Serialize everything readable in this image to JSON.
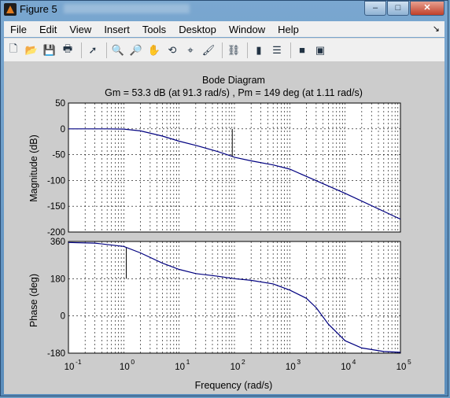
{
  "window": {
    "title": "Figure 5",
    "controls": {
      "minimize": "–",
      "maximize": "□",
      "close": "✕"
    }
  },
  "menu": {
    "items": [
      "File",
      "Edit",
      "View",
      "Insert",
      "Tools",
      "Desktop",
      "Window",
      "Help"
    ],
    "overflow_arrow": "↘"
  },
  "toolbar": {
    "buttons": [
      {
        "name": "new-figure-icon",
        "glyph": "🗋"
      },
      {
        "name": "open-file-icon",
        "glyph": "📂"
      },
      {
        "name": "save-figure-icon",
        "glyph": "💾"
      },
      {
        "name": "print-figure-icon",
        "glyph": "🖶"
      },
      {
        "name": "edit-plot-arrow-icon",
        "glyph": "➚"
      },
      {
        "name": "zoom-in-icon",
        "glyph": "🔍"
      },
      {
        "name": "zoom-out-icon",
        "glyph": "🔎"
      },
      {
        "name": "pan-hand-icon",
        "glyph": "✋"
      },
      {
        "name": "rotate-3d-icon",
        "glyph": "⟲"
      },
      {
        "name": "data-cursor-icon",
        "glyph": "⌖"
      },
      {
        "name": "brush-icon",
        "glyph": "🖌"
      },
      {
        "name": "link-plot-icon",
        "glyph": "⛓"
      },
      {
        "name": "insert-colorbar-icon",
        "glyph": "▮"
      },
      {
        "name": "insert-legend-icon",
        "glyph": "☰"
      },
      {
        "name": "hide-plot-tools-icon",
        "glyph": "■"
      },
      {
        "name": "show-plot-tools-icon",
        "glyph": "▣"
      }
    ]
  },
  "plot": {
    "title": "Bode Diagram",
    "subtitle": "Gm = 53.3 dB (at 91.3 rad/s) ,  Pm = 149 deg (at 1.11 rad/s)",
    "xlabel": "Frequency  (rad/s)",
    "magnitude_ylabel": "Magnitude (dB)",
    "phase_ylabel": "Phase (deg)",
    "x_tick_mantissa": "10",
    "x_tick_exponents": [
      "-1",
      "0",
      "1",
      "2",
      "3",
      "4",
      "5"
    ],
    "magnitude_yticks": [
      "50",
      "0",
      "-50",
      "-100",
      "-150",
      "-200"
    ],
    "phase_yticks": [
      "360",
      "180",
      "0",
      "-180"
    ]
  },
  "chart_data": [
    {
      "type": "line",
      "title": "Bode Diagram",
      "ylabel": "Magnitude (dB)",
      "xscale": "log",
      "xlim": [
        0.1,
        100000
      ],
      "ylim": [
        -200,
        50
      ],
      "grid": true,
      "line_color": "#000080",
      "x": [
        0.1,
        0.5,
        1,
        2,
        5,
        10,
        20,
        50,
        91.3,
        100,
        200,
        500,
        1000,
        10000,
        100000
      ],
      "y": [
        0,
        0,
        -0.5,
        -4,
        -14,
        -24,
        -32,
        -44,
        -53.3,
        -55,
        -62,
        -70,
        -78,
        -125,
        -175
      ],
      "gain_margin_marker": {
        "x": 91.3,
        "from": 0,
        "to": -53.3
      }
    },
    {
      "type": "line",
      "ylabel": "Phase (deg)",
      "xscale": "log",
      "xlim": [
        0.1,
        100000
      ],
      "ylim": [
        -180,
        360
      ],
      "grid": true,
      "line_color": "#000080",
      "x": [
        0.1,
        0.3,
        1,
        2,
        5,
        10,
        20,
        50,
        100,
        200,
        500,
        1000,
        2000,
        3000,
        5000,
        10000,
        20000,
        50000,
        100000
      ],
      "y": [
        355,
        352,
        336,
        305,
        255,
        225,
        205,
        192,
        180,
        172,
        155,
        125,
        85,
        40,
        -40,
        -120,
        -155,
        -172,
        -176
      ],
      "phase_margin_marker": {
        "x": 1.11,
        "from": 180,
        "to": 329
      }
    }
  ]
}
